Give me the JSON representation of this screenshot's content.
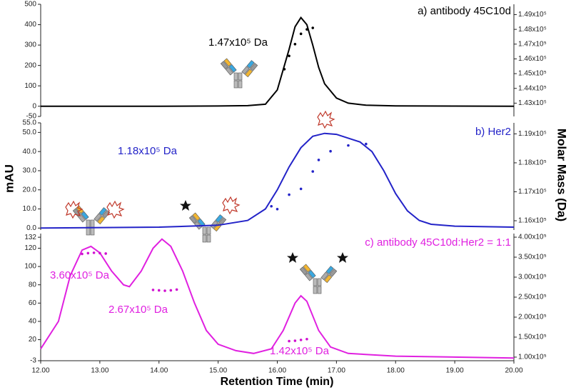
{
  "x_label": "Retention Time (min)",
  "y_label": "mAU",
  "y2_label": "Molar Mass (Da)",
  "chart_data": [
    {
      "type": "line",
      "title": "a) antibody 45C10d",
      "xlim": [
        12,
        20
      ],
      "ylim": [
        -50,
        500
      ],
      "yticks": [
        -50,
        0,
        100,
        200,
        300,
        400,
        500
      ],
      "y2lim": [
        142100,
        149700
      ],
      "y2ticks": [
        {
          "value": 143000,
          "label": "1.43x10⁵"
        },
        {
          "value": 144000,
          "label": "1.44x10⁵"
        },
        {
          "value": 145000,
          "label": "1.45x10⁵"
        },
        {
          "value": 146000,
          "label": "1.46x10⁵"
        },
        {
          "value": 147000,
          "label": "1.47x10⁵"
        },
        {
          "value": 148000,
          "label": "1.48x10⁵"
        },
        {
          "value": 149000,
          "label": "1.49x10⁵"
        }
      ],
      "annotations": [
        "1.47x10⁵ Da"
      ],
      "series": [
        {
          "marker": "line",
          "color": "#000000",
          "x": [
            12,
            14,
            15,
            15.5,
            15.8,
            16.0,
            16.2,
            16.3,
            16.4,
            16.5,
            16.6,
            16.7,
            16.8,
            17.0,
            17.2,
            17.5,
            18,
            20
          ],
          "values": [
            0,
            0,
            1,
            3,
            10,
            80,
            280,
            390,
            435,
            400,
            300,
            190,
            110,
            40,
            15,
            5,
            2,
            0
          ]
        },
        {
          "marker": "dots",
          "axis": "y2",
          "color": "#000000",
          "x": [
            16.12,
            16.2,
            16.3,
            16.4,
            16.5,
            16.6
          ],
          "values": [
            145300,
            146200,
            147000,
            147700,
            148000,
            148100
          ]
        }
      ]
    },
    {
      "type": "line",
      "title": "b) Her2",
      "xlim": [
        12,
        20
      ],
      "ylim": [
        -1,
        55
      ],
      "yticks": [
        {
          "value": 0,
          "label": "0.0"
        },
        {
          "value": 10,
          "label": "10.0"
        },
        {
          "value": 20,
          "label": "20.0"
        },
        {
          "value": 30,
          "label": "30.0"
        },
        {
          "value": 40,
          "label": "40.0"
        },
        {
          "value": 50,
          "label": "50.0"
        },
        {
          "value": 55,
          "label": "55.0"
        }
      ],
      "y2lim": [
        115680,
        119380
      ],
      "y2ticks": [
        {
          "value": 116000,
          "label": "1.16x10⁵"
        },
        {
          "value": 117000,
          "label": "1.17x10⁵"
        },
        {
          "value": 118000,
          "label": "1.18x10⁵"
        },
        {
          "value": 119000,
          "label": "1.19x10⁵"
        }
      ],
      "annotations": [
        "1.18x10⁵ Da"
      ],
      "series": [
        {
          "marker": "line",
          "color": "#2323c8",
          "x": [
            12,
            14,
            15,
            15.5,
            15.8,
            16.0,
            16.2,
            16.4,
            16.6,
            16.8,
            17.0,
            17.2,
            17.4,
            17.6,
            17.8,
            18.0,
            18.2,
            18.4,
            18.6,
            19,
            20
          ],
          "values": [
            0,
            0.5,
            1.5,
            4,
            10,
            20,
            32,
            42,
            48,
            49.5,
            49,
            47,
            45,
            40,
            30,
            18,
            9,
            4,
            2,
            1,
            0.5
          ]
        },
        {
          "marker": "dots",
          "axis": "y2",
          "color": "#2323c8",
          "x": [
            15.9,
            16.0,
            16.2,
            16.4,
            16.6,
            16.7,
            16.9,
            17.2,
            17.5
          ],
          "values": [
            116500,
            116400,
            116900,
            117100,
            117700,
            118100,
            118400,
            118600,
            118650
          ]
        }
      ]
    },
    {
      "type": "line",
      "title": "c) antibody 45C10d:Her2 = 1:1",
      "xlim": [
        12,
        20
      ],
      "ylim": [
        -3,
        136
      ],
      "yticks": [
        -3,
        20,
        40,
        60,
        80,
        100,
        120,
        132
      ],
      "xticks": [
        {
          "value": 12,
          "label": "12.00"
        },
        {
          "value": 13,
          "label": "13.00"
        },
        {
          "value": 14,
          "label": "14.00"
        },
        {
          "value": 15,
          "label": "15.00"
        },
        {
          "value": 16,
          "label": "16.00"
        },
        {
          "value": 17,
          "label": "17.00"
        },
        {
          "value": 18,
          "label": "18.00"
        },
        {
          "value": 19,
          "label": "19.00"
        },
        {
          "value": 20,
          "label": "20.00"
        }
      ],
      "y2lim": [
        91000,
        409000
      ],
      "y2ticks": [
        {
          "value": 100000,
          "label": "1.00x10⁵"
        },
        {
          "value": 150000,
          "label": "1.50x10⁵"
        },
        {
          "value": 200000,
          "label": "2.00x10⁵"
        },
        {
          "value": 250000,
          "label": "2.50x10⁵"
        },
        {
          "value": 300000,
          "label": "3.00x10⁵"
        },
        {
          "value": 350000,
          "label": "3.50x10⁵"
        },
        {
          "value": 400000,
          "label": "4.00x10⁵"
        }
      ],
      "annotations": [
        "3.60x10⁵ Da",
        "2.67x10⁵ Da",
        "1.42x10⁵ Da"
      ],
      "series": [
        {
          "marker": "line",
          "color": "#e020e0",
          "x": [
            12,
            12.3,
            12.5,
            12.7,
            12.85,
            13.0,
            13.2,
            13.4,
            13.5,
            13.7,
            13.9,
            14.05,
            14.2,
            14.4,
            14.6,
            14.8,
            15.0,
            15.3,
            15.6,
            15.9,
            16.1,
            16.3,
            16.4,
            16.5,
            16.7,
            16.9,
            17.2,
            18,
            20
          ],
          "values": [
            10,
            40,
            90,
            118,
            122,
            115,
            95,
            80,
            78,
            95,
            120,
            130,
            122,
            95,
            60,
            30,
            15,
            8,
            5,
            10,
            30,
            60,
            68,
            62,
            30,
            12,
            5,
            2,
            0
          ]
        },
        {
          "marker": "dots",
          "axis": "y2",
          "color": "#d010d0",
          "x": [
            12.7,
            12.8,
            12.9,
            13.0,
            13.1,
            13.9,
            14.0,
            14.1,
            14.2,
            14.3,
            16.2,
            16.3,
            16.4,
            16.5
          ],
          "values": [
            358000,
            360000,
            361000,
            360000,
            359000,
            268000,
            267000,
            266000,
            267000,
            269000,
            140000,
            141000,
            143000,
            145000
          ]
        }
      ]
    }
  ]
}
